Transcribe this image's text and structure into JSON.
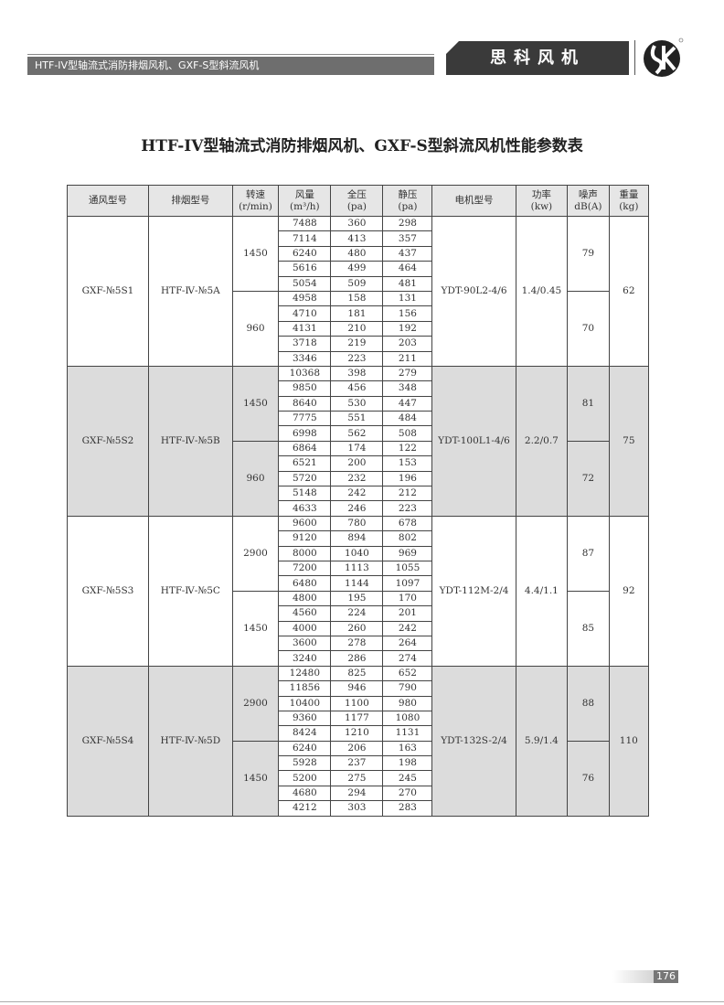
{
  "header": {
    "section_title": "HTF-IV型轴流式消防排烟风机、GXF-S型斜流风机",
    "brand": "思科风机",
    "logo": "sk-logo"
  },
  "title": "HTF-IV型轴流式消防排烟风机、GXF-S型斜流风机性能参数表",
  "table": {
    "headers": [
      "通风型号",
      "排烟型号",
      "转速\n(r/min)",
      "风量\n(m³/h)",
      "全压\n(pa)",
      "静压\n(pa)",
      "电机型号",
      "功率\n(kw)",
      "噪声\ndB(A)",
      "重量\n(kg)"
    ],
    "groups": [
      {
        "vent": "GXF-№5S1",
        "smoke": "HTF-Ⅳ-№5A",
        "motor": "YDT-90L2-4/6",
        "power": "1.4/0.45",
        "weight": "62",
        "speeds": [
          {
            "rpm": "1450",
            "noise": "79",
            "rows": [
              [
                "7488",
                "360",
                "298"
              ],
              [
                "7114",
                "413",
                "357"
              ],
              [
                "6240",
                "480",
                "437"
              ],
              [
                "5616",
                "499",
                "464"
              ],
              [
                "5054",
                "509",
                "481"
              ]
            ]
          },
          {
            "rpm": "960",
            "noise": "70",
            "rows": [
              [
                "4958",
                "158",
                "131"
              ],
              [
                "4710",
                "181",
                "156"
              ],
              [
                "4131",
                "210",
                "192"
              ],
              [
                "3718",
                "219",
                "203"
              ],
              [
                "3346",
                "223",
                "211"
              ]
            ]
          }
        ]
      },
      {
        "vent": "GXF-№5S2",
        "smoke": "HTF-Ⅳ-№5B",
        "motor": "YDT-100L1-4/6",
        "power": "2.2/0.7",
        "weight": "75",
        "speeds": [
          {
            "rpm": "1450",
            "noise": "81",
            "rows": [
              [
                "10368",
                "398",
                "279"
              ],
              [
                "9850",
                "456",
                "348"
              ],
              [
                "8640",
                "530",
                "447"
              ],
              [
                "7775",
                "551",
                "484"
              ],
              [
                "6998",
                "562",
                "508"
              ]
            ]
          },
          {
            "rpm": "960",
            "noise": "72",
            "rows": [
              [
                "6864",
                "174",
                "122"
              ],
              [
                "6521",
                "200",
                "153"
              ],
              [
                "5720",
                "232",
                "196"
              ],
              [
                "5148",
                "242",
                "212"
              ],
              [
                "4633",
                "246",
                "223"
              ]
            ]
          }
        ]
      },
      {
        "vent": "GXF-№5S3",
        "smoke": "HTF-Ⅳ-№5C",
        "motor": "YDT-112M-2/4",
        "power": "4.4/1.1",
        "weight": "92",
        "speeds": [
          {
            "rpm": "2900",
            "noise": "87",
            "rows": [
              [
                "9600",
                "780",
                "678"
              ],
              [
                "9120",
                "894",
                "802"
              ],
              [
                "8000",
                "1040",
                "969"
              ],
              [
                "7200",
                "1113",
                "1055"
              ],
              [
                "6480",
                "1144",
                "1097"
              ]
            ]
          },
          {
            "rpm": "1450",
            "noise": "85",
            "rows": [
              [
                "4800",
                "195",
                "170"
              ],
              [
                "4560",
                "224",
                "201"
              ],
              [
                "4000",
                "260",
                "242"
              ],
              [
                "3600",
                "278",
                "264"
              ],
              [
                "3240",
                "286",
                "274"
              ]
            ]
          }
        ]
      },
      {
        "vent": "GXF-№5S4",
        "smoke": "HTF-Ⅳ-№5D",
        "motor": "YDT-132S-2/4",
        "power": "5.9/1.4",
        "weight": "110",
        "speeds": [
          {
            "rpm": "2900",
            "noise": "88",
            "rows": [
              [
                "12480",
                "825",
                "652"
              ],
              [
                "11856",
                "946",
                "790"
              ],
              [
                "10400",
                "1100",
                "980"
              ],
              [
                "9360",
                "1177",
                "1080"
              ],
              [
                "8424",
                "1210",
                "1131"
              ]
            ]
          },
          {
            "rpm": "1450",
            "noise": "76",
            "rows": [
              [
                "6240",
                "206",
                "163"
              ],
              [
                "5928",
                "237",
                "198"
              ],
              [
                "5200",
                "275",
                "245"
              ],
              [
                "4680",
                "294",
                "270"
              ],
              [
                "4212",
                "303",
                "283"
              ]
            ]
          }
        ]
      }
    ]
  },
  "page_number": "176"
}
